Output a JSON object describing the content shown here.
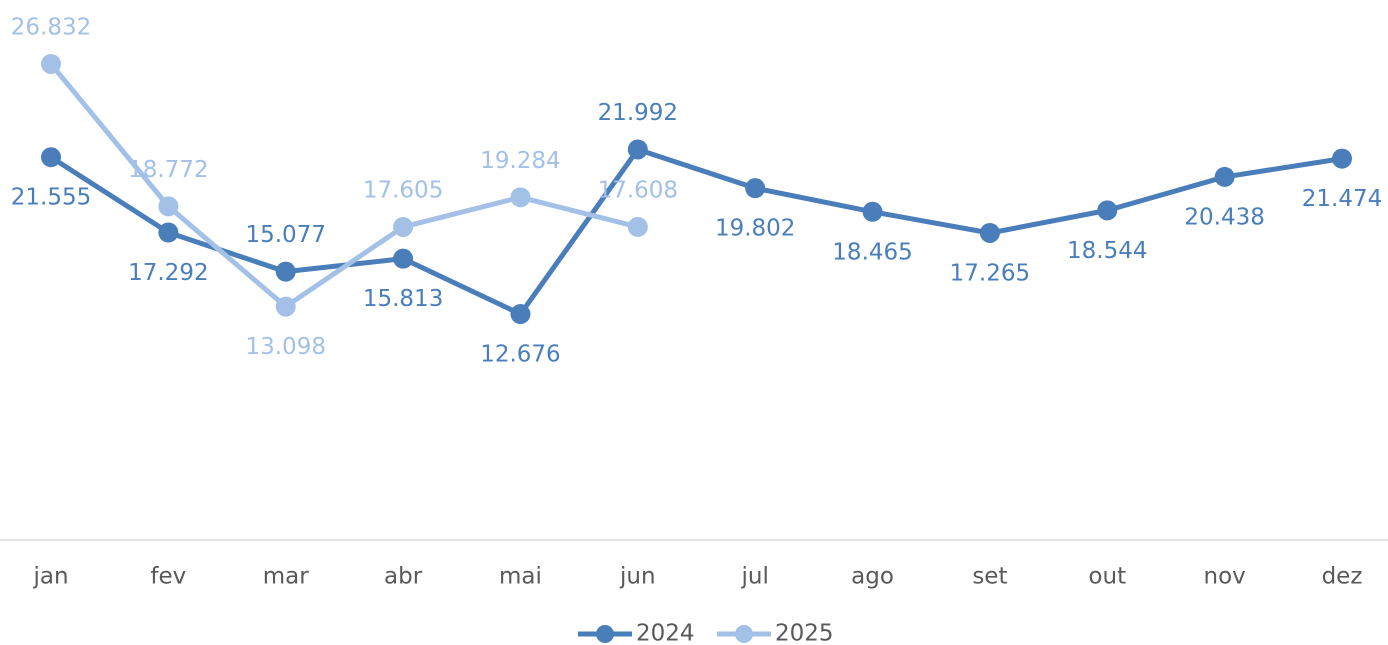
{
  "chart_data": {
    "type": "line",
    "categories": [
      "jan",
      "fev",
      "mar",
      "abr",
      "mai",
      "jun",
      "jul",
      "ago",
      "set",
      "out",
      "nov",
      "dez"
    ],
    "series": [
      {
        "name": "2024",
        "color": "#4a7ebb",
        "values": [
          21555,
          17292,
          15077,
          15813,
          12676,
          21992,
          19802,
          18465,
          17265,
          18544,
          20438,
          21474
        ],
        "value_labels": [
          "21.555",
          "17.292",
          "15.077",
          "15.813",
          "12.676",
          "21.992",
          "19.802",
          "18.465",
          "17.265",
          "18.544",
          "20.438",
          "21.474"
        ]
      },
      {
        "name": "2025",
        "color": "#a3c1e6",
        "values": [
          26832,
          18772,
          13098,
          17605,
          19284,
          17608,
          null,
          null,
          null,
          null,
          null,
          null
        ],
        "value_labels": [
          "26.832",
          "18.772",
          "13.098",
          "17.605",
          "19.284",
          "17.608",
          null,
          null,
          null,
          null,
          null,
          null
        ]
      }
    ],
    "ylim": [
      0,
      30000
    ]
  }
}
